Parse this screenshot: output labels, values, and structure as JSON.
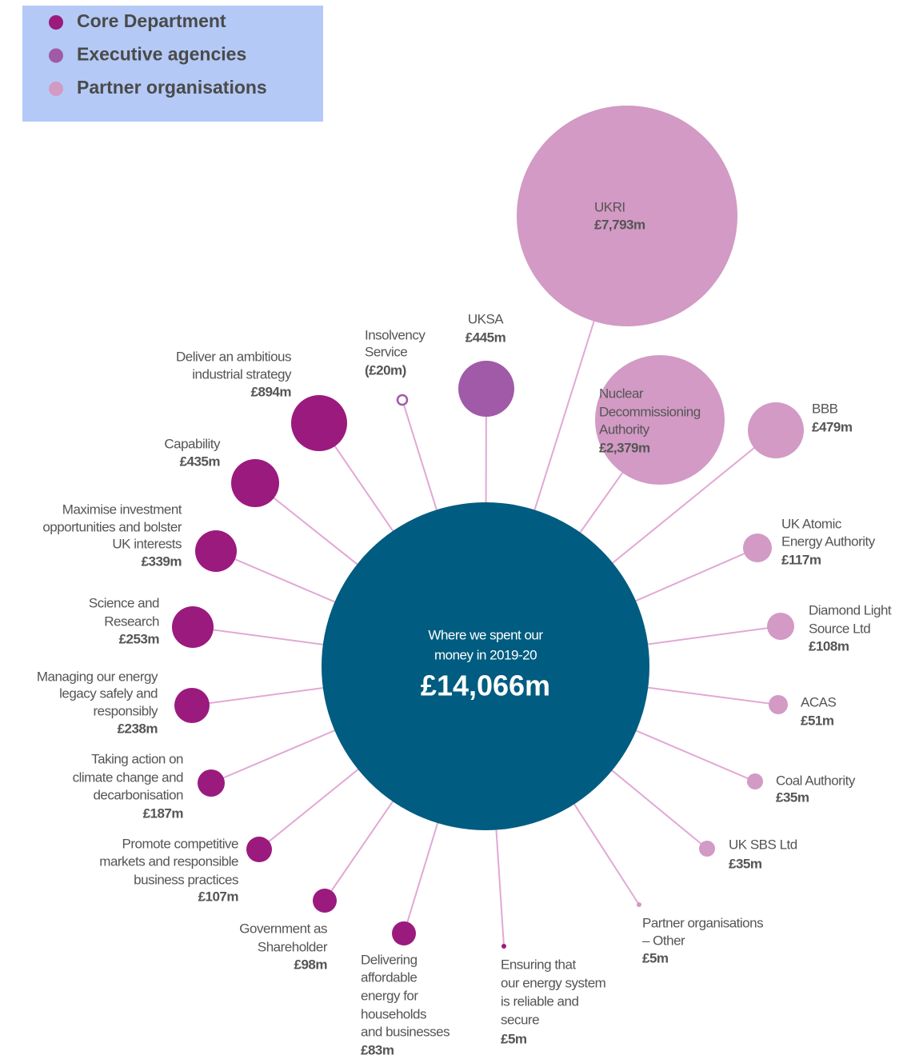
{
  "legend": [
    {
      "label": "Core Department",
      "color": "#9b1a7e"
    },
    {
      "label": "Executive agencies",
      "color": "#a05aa8"
    },
    {
      "label": "Partner organisations",
      "color": "#d29ac4"
    }
  ],
  "center": {
    "caption": [
      "Where we spent our",
      "money in 2019-20"
    ],
    "total": "£14,066m",
    "color": "#005c80"
  },
  "nodes": [
    {
      "label": [
        "UKRI"
      ],
      "amount": "£7,793m",
      "color": "#d29ac4"
    },
    {
      "label": [
        "Nuclear",
        "Decommissioning",
        "Authority"
      ],
      "amount": "£2,379m",
      "color": "#d29ac4"
    },
    {
      "label": [
        "BBB"
      ],
      "amount": "£479m",
      "color": "#d29ac4"
    },
    {
      "label": [
        "UK Atomic",
        "Energy Authority"
      ],
      "amount": "£117m",
      "color": "#d29ac4"
    },
    {
      "label": [
        "Diamond Light",
        "Source Ltd"
      ],
      "amount": "£108m",
      "color": "#d29ac4"
    },
    {
      "label": [
        "ACAS"
      ],
      "amount": "£51m",
      "color": "#d29ac4"
    },
    {
      "label": [
        "Coal Authority"
      ],
      "amount": "£35m",
      "color": "#d29ac4"
    },
    {
      "label": [
        "UK SBS Ltd"
      ],
      "amount": "£35m",
      "color": "#d29ac4"
    },
    {
      "label": [
        "Partner organisations",
        "– Other"
      ],
      "amount": "£5m",
      "color": "#d29ac4"
    },
    {
      "label": [
        "Ensuring that",
        "our energy system",
        "is reliable and",
        "secure"
      ],
      "amount": "£5m",
      "color": "#9b1a7e"
    },
    {
      "label": [
        "Delivering",
        "affordable",
        "energy for",
        "households",
        "and businesses"
      ],
      "amount": "£83m",
      "color": "#9b1a7e"
    },
    {
      "label": [
        "Government as",
        "Shareholder"
      ],
      "amount": "£98m",
      "color": "#9b1a7e"
    },
    {
      "label": [
        "Promote competitive",
        "markets and responsible",
        "business practices"
      ],
      "amount": "£107m",
      "color": "#9b1a7e"
    },
    {
      "label": [
        "Taking action on",
        "climate change and",
        "decarbonisation"
      ],
      "amount": "£187m",
      "color": "#9b1a7e"
    },
    {
      "label": [
        "Managing our energy",
        "legacy safely and",
        "responsibly"
      ],
      "amount": "£238m",
      "color": "#9b1a7e"
    },
    {
      "label": [
        "Science and",
        "Research"
      ],
      "amount": "£253m",
      "color": "#9b1a7e"
    },
    {
      "label": [
        "Maximise investment",
        "opportunities and bolster",
        "UK interests"
      ],
      "amount": "£339m",
      "color": "#9b1a7e"
    },
    {
      "label": [
        "Capability"
      ],
      "amount": "£435m",
      "color": "#9b1a7e"
    },
    {
      "label": [
        "Deliver an ambitious",
        "industrial strategy"
      ],
      "amount": "£894m",
      "color": "#9b1a7e"
    },
    {
      "label": [
        "Insolvency",
        "Service"
      ],
      "amount": "(£20m)",
      "color": "#a05aa8"
    },
    {
      "label": [
        "UKSA"
      ],
      "amount": "£445m",
      "color": "#a05aa8"
    }
  ]
}
